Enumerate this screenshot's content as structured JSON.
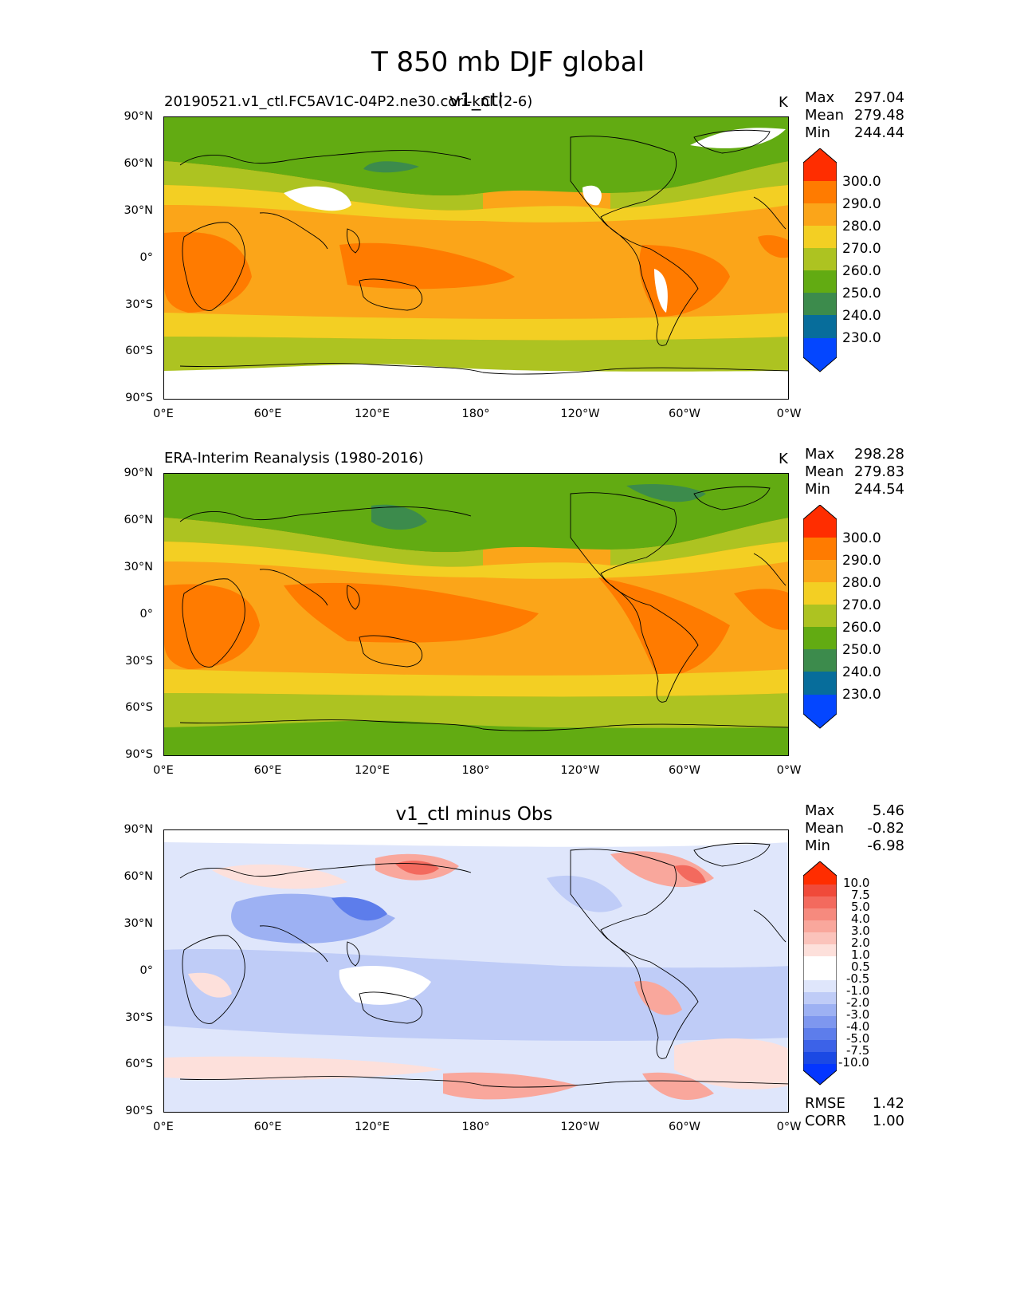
{
  "figure": {
    "title": "T 850 mb DJF global"
  },
  "axes": {
    "y_ticks": [
      "90°N",
      "60°N",
      "30°N",
      "0°",
      "30°S",
      "60°S",
      "90°S"
    ],
    "x_ticks": [
      "0°E",
      "60°E",
      "120°E",
      "180°",
      "120°W",
      "60°W",
      "0°W"
    ]
  },
  "panels": [
    {
      "left_title": "20190521.v1_ctl.FC5AV1C-04P2.ne30.cori-knl (2-6)",
      "center_title": "v1_ctl",
      "units": "K",
      "stats": {
        "max_label": "Max",
        "max": "297.04",
        "mean_label": "Mean",
        "mean": "279.48",
        "min_label": "Min",
        "min": "244.44"
      },
      "colorbar": {
        "labels": [
          "300.0",
          "290.0",
          "280.0",
          "270.0",
          "260.0",
          "250.0",
          "240.0",
          "230.0"
        ],
        "colors": [
          "#ff2d00",
          "#ff7b00",
          "#fba519",
          "#f3cf23",
          "#adc321",
          "#62ab12",
          "#3c8b4c",
          "#076d9b",
          "#0446ff"
        ]
      }
    },
    {
      "left_title": "ERA-Interim Reanalysis (1980-2016)",
      "center_title": "",
      "units": "K",
      "stats": {
        "max_label": "Max",
        "max": "298.28",
        "mean_label": "Mean",
        "mean": "279.83",
        "min_label": "Min",
        "min": "244.54"
      },
      "colorbar": {
        "labels": [
          "300.0",
          "290.0",
          "280.0",
          "270.0",
          "260.0",
          "250.0",
          "240.0",
          "230.0"
        ],
        "colors": [
          "#ff2d00",
          "#ff7b00",
          "#fba519",
          "#f3cf23",
          "#adc321",
          "#62ab12",
          "#3c8b4c",
          "#076d9b",
          "#0446ff"
        ]
      }
    },
    {
      "left_title": "",
      "center_title": "v1_ctl minus Obs",
      "units": "",
      "stats": {
        "max_label": "Max",
        "max": "5.46",
        "mean_label": "Mean",
        "mean": "-0.82",
        "min_label": "Min",
        "min": "-6.98"
      },
      "colorbar": {
        "labels": [
          "10.0",
          "7.5",
          "5.0",
          "4.0",
          "3.0",
          "2.0",
          "1.0",
          "0.5",
          "-0.5",
          "-1.0",
          "-2.0",
          "-3.0",
          "-4.0",
          "-5.0",
          "-7.5",
          "-10.0"
        ],
        "colors": [
          "#ff2d00",
          "#f04a3a",
          "#f36a5e",
          "#f68a7e",
          "#f9a79c",
          "#fbc3bb",
          "#fde0db",
          "#ffffff",
          "#ffffff",
          "#dfe6fb",
          "#bfccf7",
          "#9db1f3",
          "#7e97ef",
          "#5d7deb",
          "#3c62e8",
          "#1b49e4",
          "#0436ff"
        ]
      },
      "extra_stats": {
        "rmse_label": "RMSE",
        "rmse": "1.42",
        "corr_label": "CORR",
        "corr": "1.00"
      }
    }
  ],
  "map_colors": {
    "level_250": "#62ab12",
    "level_240": "#3c8b4c",
    "level_260": "#adc321",
    "level_270": "#f3cf23",
    "level_280": "#fba519",
    "level_290": "#ff7b00",
    "missing": "#ffffff",
    "diff_pos": "#f9a79c",
    "diff_pos_strong": "#f36a5e",
    "diff_neg": "#bfccf7",
    "diff_neg_strong": "#7e97ef",
    "diff_neg_deep": "#3c62e8"
  }
}
